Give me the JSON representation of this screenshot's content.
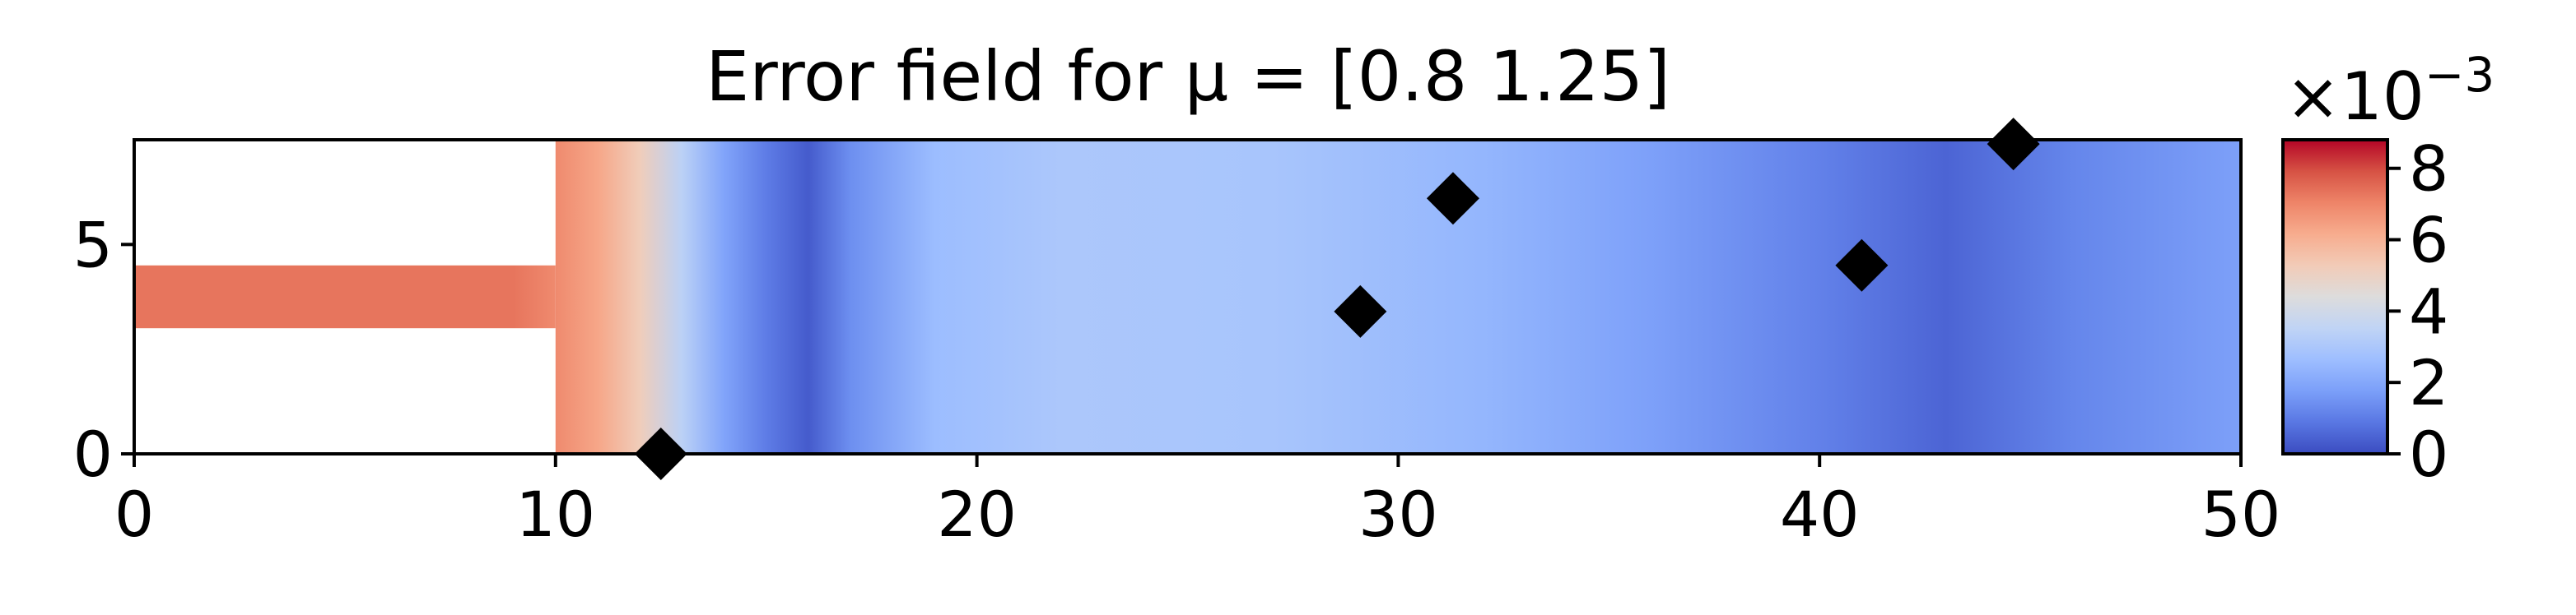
{
  "chart_data": {
    "type": "heatmap",
    "title": "Error field for μ = [0.8  1.25]",
    "xlim": [
      0,
      50
    ],
    "ylim": [
      0,
      7.5
    ],
    "x_ticks": [
      0,
      10,
      20,
      30,
      40,
      50
    ],
    "y_ticks": [
      0,
      5
    ],
    "grid": false,
    "domain": {
      "inlet_channel": {
        "x": [
          0,
          10
        ],
        "y": [
          3.0,
          4.5
        ]
      },
      "main_channel": {
        "x": [
          10,
          50
        ],
        "y": [
          0,
          7.5
        ]
      }
    },
    "error_profile_x": [
      [
        0,
        7.3
      ],
      [
        9,
        7.3
      ],
      [
        10,
        6.9
      ],
      [
        11,
        6.3
      ],
      [
        12,
        5.2
      ],
      [
        13,
        3.4
      ],
      [
        14,
        1.9
      ],
      [
        15,
        1.0
      ],
      [
        16,
        0.3
      ],
      [
        17,
        1.4
      ],
      [
        19,
        2.6
      ],
      [
        22,
        3.0
      ],
      [
        27,
        2.9
      ],
      [
        32,
        2.4
      ],
      [
        36,
        1.8
      ],
      [
        40,
        1.1
      ],
      [
        43,
        0.5
      ],
      [
        46,
        1.2
      ],
      [
        50,
        1.8
      ]
    ],
    "markers": {
      "shape": "diamond",
      "color": "#000000",
      "points": [
        {
          "x": 12.5,
          "y": 0.0
        },
        {
          "x": 29.1,
          "y": 3.4
        },
        {
          "x": 31.3,
          "y": 6.1
        },
        {
          "x": 41.0,
          "y": 4.5
        },
        {
          "x": 44.6,
          "y": 7.4
        }
      ]
    },
    "colorbar": {
      "colormap": "coolwarm",
      "min": 0,
      "max": 8.8,
      "ticks": [
        0,
        2,
        4,
        6,
        8
      ],
      "multiplier_base": "×10",
      "multiplier_exp": "−3",
      "colors": [
        "#3b4cc0",
        "#5977e3",
        "#7b9ff9",
        "#9ebeff",
        "#c0d4f5",
        "#dddcdc",
        "#f2cbb7",
        "#f7ac8e",
        "#ee8468",
        "#d65244",
        "#b40426"
      ]
    }
  }
}
